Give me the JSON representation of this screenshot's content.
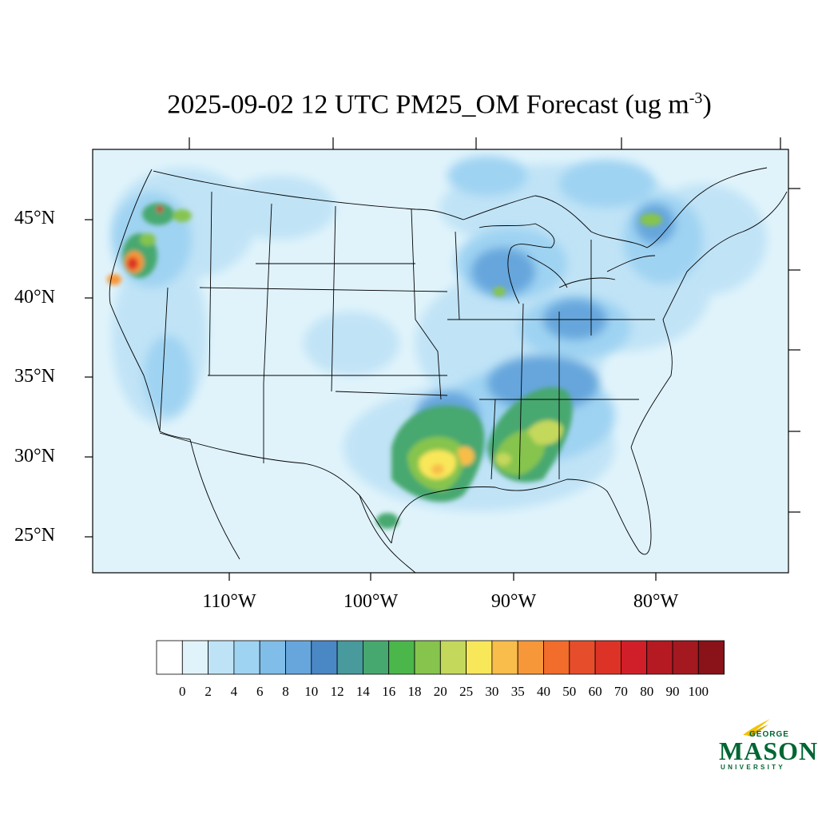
{
  "title": {
    "main": "2025-09-02 12 UTC PM25_OM Forecast (ug m",
    "sup": "-3",
    "close": ")"
  },
  "lat_labels": [
    "45°N",
    "40°N",
    "35°N",
    "30°N",
    "25°N"
  ],
  "lon_labels": [
    "110°W",
    "100°W",
    "90°W",
    "80°W"
  ],
  "colorbar": {
    "labels": [
      "0",
      "2",
      "4",
      "6",
      "8",
      "10",
      "12",
      "14",
      "16",
      "18",
      "20",
      "25",
      "30",
      "35",
      "40",
      "50",
      "60",
      "70",
      "80",
      "90",
      "100"
    ],
    "colors": [
      "#ffffff",
      "#e0f3fb",
      "#bfe3f6",
      "#9fd3f2",
      "#80bde8",
      "#66a6dc",
      "#4a87c5",
      "#489a9c",
      "#47a86f",
      "#4bb74a",
      "#86c44d",
      "#c4d85b",
      "#f9e75a",
      "#f8bd4a",
      "#f69739",
      "#f26c2b",
      "#e64d2b",
      "#dd3326",
      "#d11f29",
      "#b51a23",
      "#a41820",
      "#8a1219"
    ]
  },
  "logo": {
    "line1": "GEORGE",
    "line2": "MASON",
    "line3": "UNIVERSITY",
    "color": "#006633"
  }
}
